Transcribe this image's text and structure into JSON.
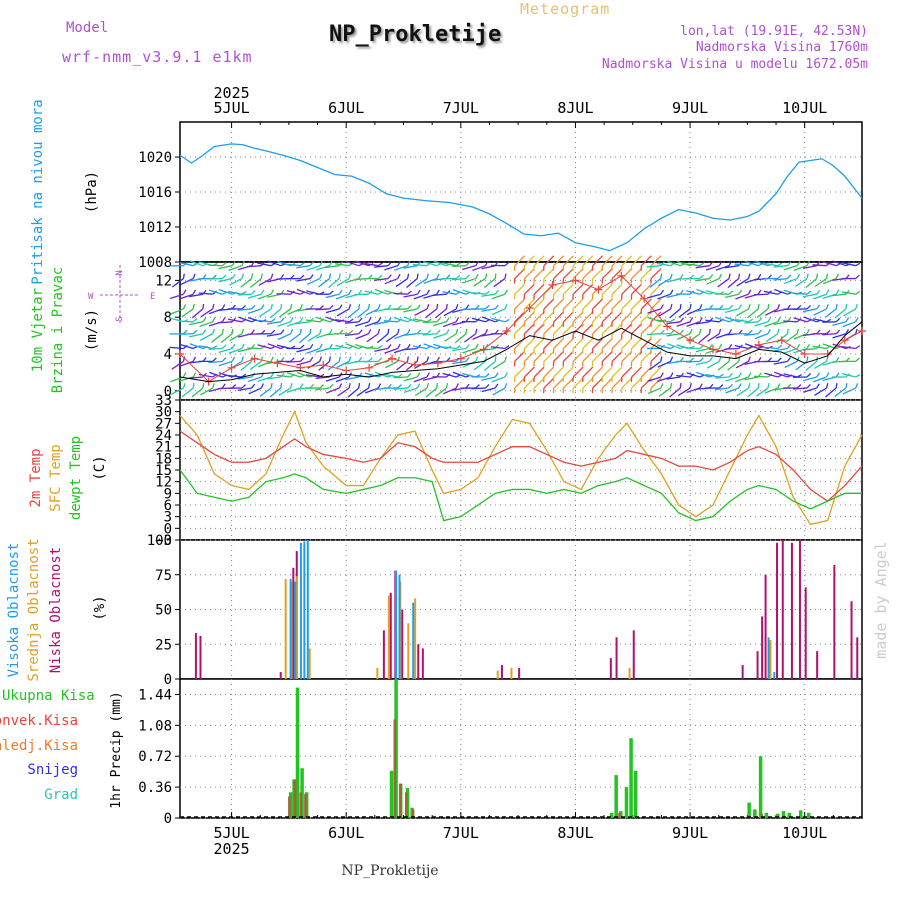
{
  "header": {
    "model_label": "Model",
    "model_name": "wrf-nmm_v3.9.1 e1km",
    "title": "NP_Prokletije",
    "meteogram": "Meteogram",
    "lonlat": "lon,lat (19.91E, 42.53N)",
    "altitude": "Nadmorska Visina 1760m",
    "altitude_model": "Nadmorska Visina u modelu 1672.05m",
    "year": "2025",
    "footer": "NP_Prokletije",
    "watermark": "made by Angel"
  },
  "colors": {
    "pressure": "#1e9ee6",
    "temp2m": "#e8453c",
    "sfc_temp": "#e0a020",
    "dewpt": "#22c422",
    "visoka": "#1e9ee6",
    "srednja": "#e0a020",
    "niska": "#b0106e",
    "ukupna": "#22c422",
    "konvek": "#e8453c",
    "zaledj": "#f07a28",
    "snijeg": "#3030e0",
    "grad": "#30c0c0",
    "wind_speed": "#000000",
    "gust": "#e8453c",
    "label_purple": "#b050d0"
  },
  "labels": {
    "pressure": [
      "Pritisak na nivou mora",
      "(hPa)"
    ],
    "wind": [
      "10m Vjetar",
      "Brzina i Pravac",
      "(m/s)"
    ],
    "temp": [
      "2m Temp",
      "SFC Temp",
      "dewpt Temp",
      "(C)"
    ],
    "cloud": [
      "Visoka Oblacnost",
      "Srednja Oblacnost",
      "Niska Oblacnost",
      "(%)"
    ],
    "precip_legend": [
      "Ukupna Kisa",
      "Konvek.Kisa",
      "Zaledj.Kisa",
      "Snijeg",
      "Grad"
    ],
    "precip_axis": "1hr Precip (mm)",
    "compass": {
      "w": "W",
      "e": "E",
      "n": "N",
      "s": "S"
    }
  },
  "chart_data": {
    "type": "line",
    "x_day_labels": [
      "5JUL",
      "6JUL",
      "7JUL",
      "8JUL",
      "9JUL",
      "10JUL"
    ],
    "x_range_days": [
      4.55,
      10.5
    ],
    "panels": [
      {
        "name": "pressure",
        "type": "line",
        "ylim": [
          1008,
          1024
        ],
        "yticks": [
          1008,
          1012,
          1016,
          1020
        ],
        "x": [
          4.55,
          4.65,
          4.75,
          4.85,
          5.0,
          5.1,
          5.2,
          5.3,
          5.45,
          5.6,
          5.75,
          5.9,
          6.05,
          6.2,
          6.35,
          6.5,
          6.7,
          6.9,
          7.1,
          7.25,
          7.4,
          7.55,
          7.7,
          7.85,
          8.0,
          8.15,
          8.3,
          8.45,
          8.6,
          8.75,
          8.9,
          9.05,
          9.2,
          9.35,
          9.5,
          9.6,
          9.75,
          9.85,
          9.95,
          10.05,
          10.15,
          10.25,
          10.35,
          10.5
        ],
        "y": [
          1020.2,
          1019.3,
          1020.2,
          1021.2,
          1021.5,
          1021.4,
          1021.0,
          1020.7,
          1020.2,
          1019.6,
          1018.8,
          1018.0,
          1017.8,
          1017.0,
          1015.8,
          1015.3,
          1015.0,
          1014.8,
          1014.3,
          1013.5,
          1012.4,
          1011.2,
          1011.0,
          1011.3,
          1010.2,
          1009.8,
          1009.3,
          1010.2,
          1011.8,
          1013.0,
          1014.0,
          1013.6,
          1013.0,
          1012.8,
          1013.2,
          1013.8,
          1015.8,
          1017.8,
          1019.4,
          1019.6,
          1019.8,
          1019.0,
          1017.8,
          1015.3
        ]
      },
      {
        "name": "wind",
        "type": "line",
        "ylim": [
          -1,
          14
        ],
        "yticks": [
          0,
          4,
          8,
          12
        ],
        "speed_x": [
          4.55,
          4.8,
          5.0,
          5.2,
          5.4,
          5.6,
          5.8,
          6.0,
          6.2,
          6.4,
          6.6,
          6.8,
          7.0,
          7.2,
          7.4,
          7.6,
          7.8,
          8.0,
          8.2,
          8.4,
          8.6,
          8.8,
          9.0,
          9.2,
          9.4,
          9.6,
          9.8,
          10.0,
          10.2,
          10.35,
          10.5
        ],
        "speed_y": [
          1.5,
          1.0,
          1.2,
          1.8,
          2.0,
          2.2,
          1.5,
          1.8,
          1.5,
          2.0,
          2.2,
          2.4,
          2.8,
          3.2,
          4.5,
          6.0,
          5.5,
          6.5,
          5.5,
          6.8,
          5.5,
          4.2,
          3.8,
          3.8,
          3.5,
          4.5,
          4.2,
          3.0,
          3.8,
          6.0,
          7.5
        ],
        "gust_x": [
          4.55,
          4.8,
          5.0,
          5.2,
          5.4,
          5.6,
          5.8,
          6.0,
          6.2,
          6.4,
          6.6,
          6.8,
          7.0,
          7.2,
          7.4,
          7.6,
          7.8,
          8.0,
          8.2,
          8.4,
          8.6,
          8.8,
          9.0,
          9.2,
          9.4,
          9.6,
          9.8,
          10.0,
          10.2,
          10.35,
          10.5
        ],
        "gust_y": [
          4.0,
          1.0,
          2.5,
          3.5,
          3.0,
          2.5,
          2.8,
          2.2,
          2.5,
          3.5,
          2.8,
          3.0,
          3.5,
          4.5,
          6.5,
          9.0,
          11.5,
          12.0,
          11.0,
          12.5,
          10.0,
          7.0,
          5.5,
          4.5,
          4.0,
          5.0,
          5.5,
          4.0,
          4.0,
          5.5,
          6.5
        ],
        "barb_rows": [
          0.3,
          1.5,
          3.2,
          4.6,
          6.2,
          7.5,
          8.9,
          10.5,
          12.2,
          13.6
        ]
      },
      {
        "name": "temperature",
        "type": "line",
        "ylim": [
          -3,
          33
        ],
        "yticks": [
          -3,
          0,
          3,
          6,
          9,
          12,
          15,
          18,
          21,
          24,
          27,
          30,
          33
        ],
        "x": [
          4.55,
          4.7,
          4.85,
          5.0,
          5.15,
          5.3,
          5.45,
          5.55,
          5.65,
          5.8,
          6.0,
          6.15,
          6.3,
          6.45,
          6.6,
          6.75,
          6.85,
          7.0,
          7.15,
          7.3,
          7.45,
          7.6,
          7.75,
          7.9,
          8.05,
          8.2,
          8.35,
          8.45,
          8.6,
          8.75,
          8.9,
          9.05,
          9.2,
          9.35,
          9.5,
          9.6,
          9.75,
          9.9,
          10.05,
          10.2,
          10.35,
          10.5
        ],
        "temp2m": [
          25,
          22,
          19,
          17,
          17,
          18,
          21,
          23,
          21,
          19,
          18,
          17,
          18,
          22,
          21,
          18,
          17,
          17,
          17,
          19,
          21,
          21,
          19,
          17,
          16,
          17,
          18,
          20,
          19,
          18,
          16,
          16,
          15,
          17,
          20,
          21,
          19,
          15,
          10,
          7,
          11,
          16
        ],
        "sfc": [
          29,
          24,
          14,
          11,
          10,
          14,
          24,
          30,
          22,
          16,
          11,
          11,
          18,
          24,
          25,
          15,
          9,
          10,
          13,
          21,
          28,
          27,
          20,
          12,
          10,
          18,
          24,
          27,
          20,
          14,
          6,
          3,
          6,
          15,
          24,
          29,
          21,
          8,
          1,
          2,
          16,
          24
        ],
        "dewpt": [
          15,
          9,
          8,
          7,
          8,
          12,
          13,
          14,
          13,
          10,
          9,
          10,
          11,
          13,
          13,
          12,
          2,
          3,
          6,
          9,
          10,
          10,
          9,
          10,
          9,
          11,
          12,
          13,
          11,
          9,
          4,
          2,
          3,
          7,
          10,
          11,
          10,
          7,
          5,
          7,
          9,
          9
        ]
      },
      {
        "name": "cloud",
        "type": "bar",
        "ylim": [
          0,
          100
        ],
        "yticks": [
          0,
          25,
          50,
          75,
          100
        ],
        "visoka": [
          [
            5.48,
            72
          ],
          [
            5.52,
            70
          ],
          [
            5.57,
            98
          ],
          [
            5.6,
            99
          ],
          [
            5.63,
            100
          ],
          [
            6.4,
            78
          ],
          [
            6.43,
            75
          ],
          [
            6.55,
            55
          ],
          [
            9.65,
            30
          ],
          [
            9.7,
            5
          ]
        ],
        "srednja": [
          [
            5.45,
            72
          ],
          [
            5.5,
            70
          ],
          [
            5.55,
            74
          ],
          [
            5.66,
            22
          ],
          [
            6.25,
            8
          ],
          [
            6.35,
            60
          ],
          [
            6.45,
            70
          ],
          [
            6.52,
            40
          ],
          [
            6.58,
            58
          ],
          [
            7.3,
            6
          ],
          [
            7.42,
            8
          ],
          [
            8.45,
            8
          ],
          [
            9.68,
            28
          ]
        ],
        "niska": [
          [
            4.68,
            33
          ],
          [
            4.72,
            31
          ],
          [
            5.42,
            5
          ],
          [
            5.53,
            80
          ],
          [
            5.56,
            92
          ],
          [
            6.32,
            35
          ],
          [
            6.38,
            62
          ],
          [
            6.42,
            78
          ],
          [
            6.48,
            50
          ],
          [
            6.62,
            25
          ],
          [
            6.66,
            22
          ],
          [
            7.35,
            10
          ],
          [
            7.5,
            8
          ],
          [
            8.3,
            15
          ],
          [
            8.35,
            30
          ],
          [
            8.5,
            35
          ],
          [
            9.45,
            10
          ],
          [
            9.58,
            20
          ],
          [
            9.62,
            45
          ],
          [
            9.65,
            75
          ],
          [
            9.75,
            98
          ],
          [
            9.8,
            100
          ],
          [
            9.88,
            98
          ],
          [
            9.95,
            100
          ],
          [
            10.0,
            66
          ],
          [
            10.1,
            20
          ],
          [
            10.25,
            82
          ],
          [
            10.4,
            56
          ],
          [
            10.45,
            30
          ]
        ]
      },
      {
        "name": "precip",
        "type": "bar",
        "ylim": [
          0,
          1.62
        ],
        "yticks": [
          0,
          0.36,
          0.72,
          1.08,
          1.44
        ],
        "ukupna": [
          [
            5.5,
            0.3
          ],
          [
            5.53,
            0.45
          ],
          [
            5.56,
            1.52
          ],
          [
            5.6,
            0.58
          ],
          [
            5.64,
            0.3
          ],
          [
            6.38,
            0.55
          ],
          [
            6.42,
            1.62
          ],
          [
            6.46,
            0.4
          ],
          [
            6.52,
            0.35
          ],
          [
            6.56,
            0.12
          ],
          [
            8.3,
            0.06
          ],
          [
            8.34,
            0.5
          ],
          [
            8.38,
            0.08
          ],
          [
            8.43,
            0.36
          ],
          [
            8.47,
            0.93
          ],
          [
            8.51,
            0.55
          ],
          [
            9.5,
            0.18
          ],
          [
            9.55,
            0.1
          ],
          [
            9.6,
            0.72
          ],
          [
            9.65,
            0.06
          ],
          [
            9.75,
            0.05
          ],
          [
            9.8,
            0.08
          ],
          [
            9.85,
            0.06
          ],
          [
            9.95,
            0.09
          ],
          [
            10.02,
            0.06
          ]
        ],
        "konvek": [
          [
            5.48,
            0.25
          ],
          [
            5.53,
            0.45
          ],
          [
            5.58,
            0.3
          ],
          [
            5.62,
            0.28
          ],
          [
            6.4,
            1.15
          ],
          [
            6.45,
            0.4
          ],
          [
            6.5,
            0.3
          ],
          [
            6.56,
            0.1
          ],
          [
            8.36,
            0.06
          ],
          [
            9.6,
            0.05
          ]
        ]
      }
    ]
  }
}
